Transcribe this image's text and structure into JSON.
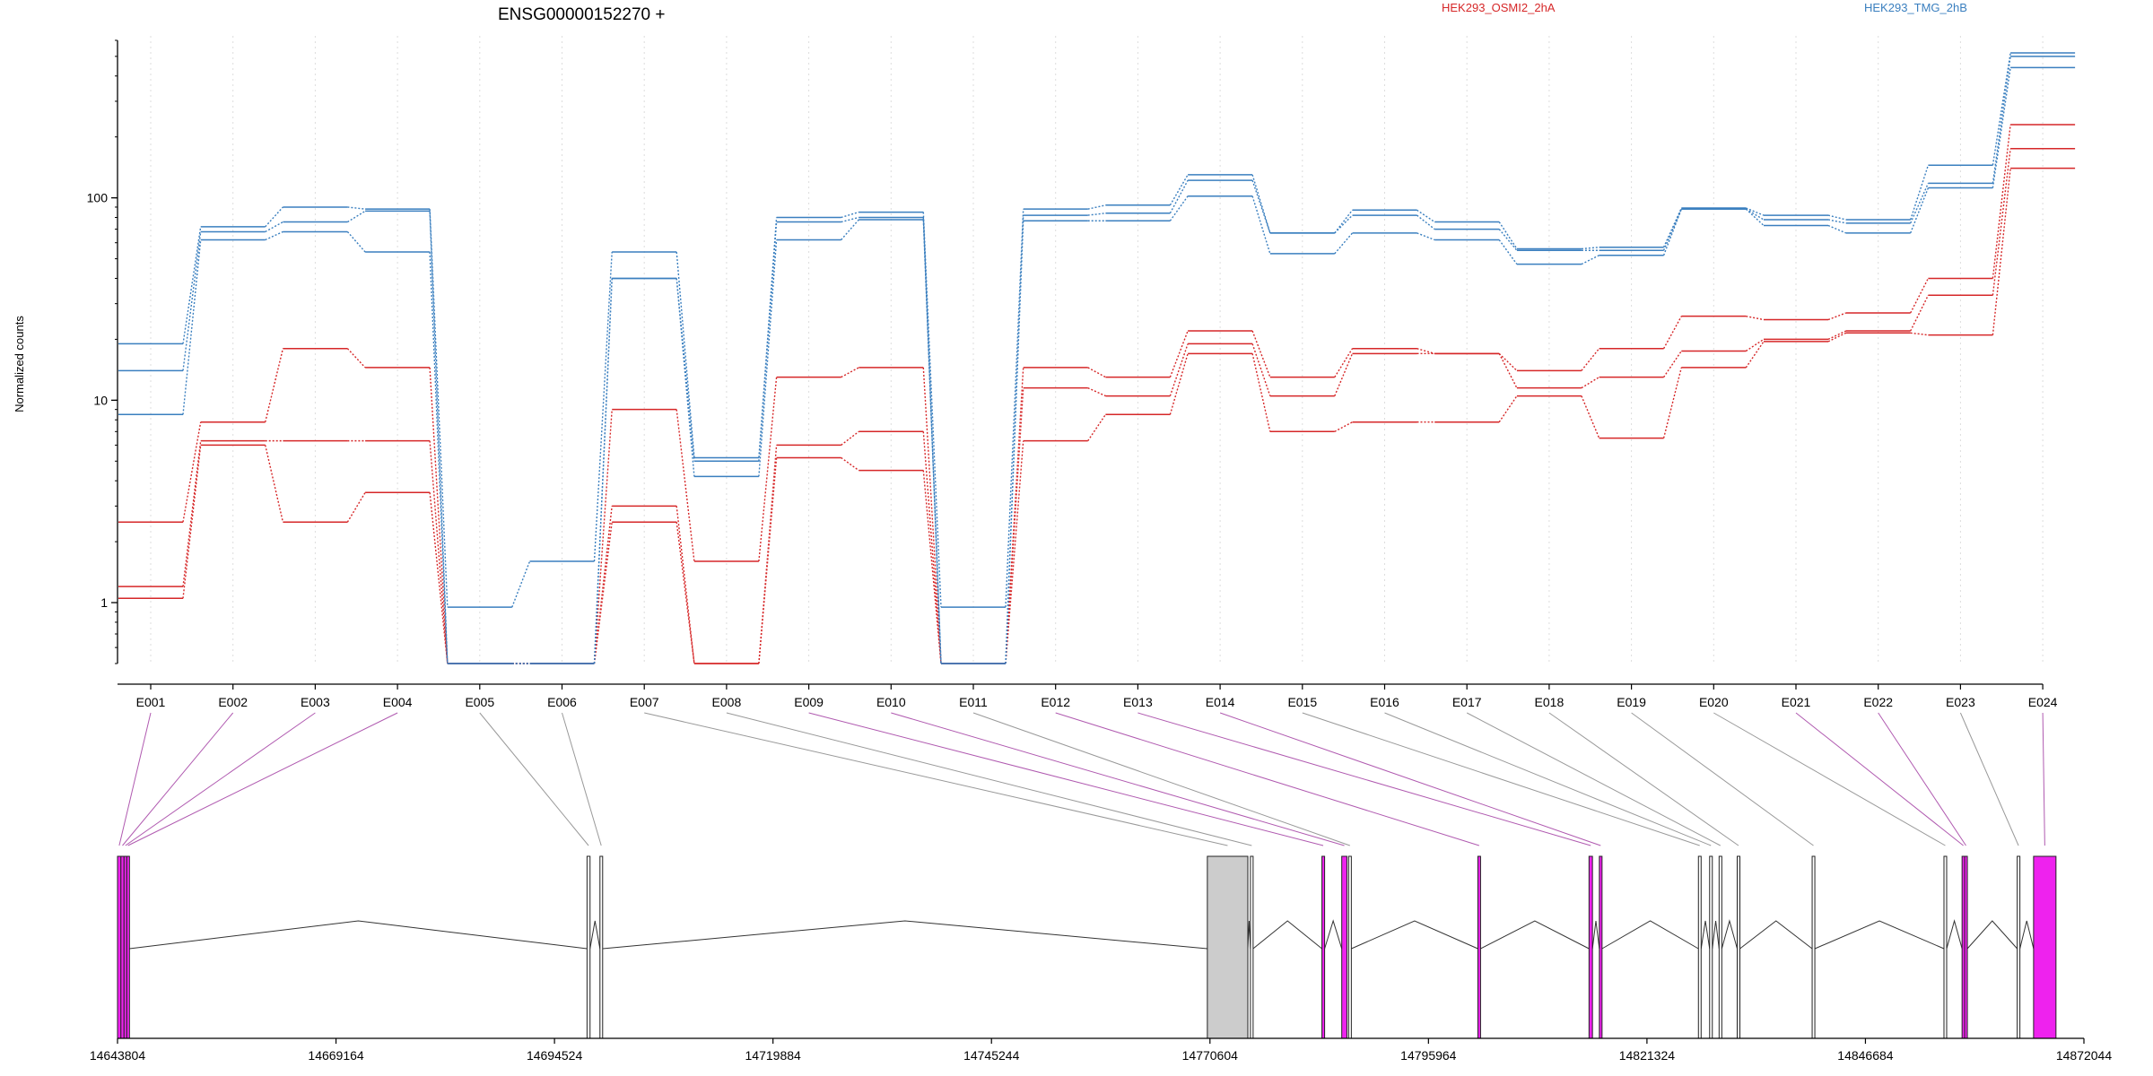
{
  "title": "ENSG00000152270 +",
  "legend": [
    {
      "label": "HEK293_OSMI2_2hA",
      "color": "#d62728"
    },
    {
      "label": "HEK293_TMG_2hB",
      "color": "#3a7fbf"
    }
  ],
  "colors": {
    "red": "#d62728",
    "blue": "#3a7fbf",
    "exon_highlight": "#ee22ee",
    "exon_gray": "#cccccc",
    "link_purple": "#b05ab0",
    "link_gray": "#999999"
  },
  "chart_data": {
    "type": "line",
    "title": "ENSG00000152270 +",
    "ylabel": "Normalized counts",
    "xlabel": "",
    "yscale": "log",
    "ylim": [
      0.5,
      600
    ],
    "yticks": [
      "1",
      "10",
      "100"
    ],
    "categories": [
      "E001",
      "E002",
      "E003",
      "E004",
      "E005",
      "E006",
      "E007",
      "E008",
      "E009",
      "E010",
      "E011",
      "E012",
      "E013",
      "E014",
      "E015",
      "E016",
      "E017",
      "E018",
      "E019",
      "E020",
      "E021",
      "E022",
      "E023",
      "E024"
    ],
    "zero_floor": 0.5,
    "series": [
      {
        "name": "HEK293_OSMI2_2hA",
        "color": "#d62728",
        "values": [
          2.5,
          7.8,
          18,
          14.5,
          0,
          0,
          9,
          1.6,
          13,
          14.5,
          0,
          14.5,
          13,
          22,
          13,
          18,
          17,
          14,
          18,
          26,
          25,
          27,
          40,
          230
        ]
      },
      {
        "name": "HEK293_OSMI2_2hA",
        "color": "#d62728",
        "values": [
          1.2,
          6.3,
          6.3,
          6.3,
          0,
          0,
          3,
          0.5,
          6,
          7,
          0,
          11.5,
          10.5,
          19,
          10.5,
          17,
          17,
          11.5,
          13,
          17.5,
          20,
          22,
          33,
          175
        ]
      },
      {
        "name": "HEK293_OSMI2_2hA",
        "color": "#d62728",
        "values": [
          1.05,
          6,
          2.5,
          3.5,
          0,
          0,
          2.5,
          0.5,
          5.2,
          4.5,
          0,
          6.3,
          8.5,
          17,
          7,
          7.8,
          7.8,
          10.5,
          6.5,
          14.5,
          19.5,
          21.5,
          21,
          140
        ]
      },
      {
        "name": "HEK293_TMG_2hB",
        "color": "#3a7fbf",
        "values": [
          19,
          72,
          90,
          88,
          0.95,
          1.6,
          54,
          5.2,
          80,
          85,
          0.95,
          88,
          92,
          130,
          67,
          87,
          76,
          56,
          57,
          89,
          82,
          78,
          145,
          520
        ]
      },
      {
        "name": "HEK293_TMG_2hB",
        "color": "#3a7fbf",
        "values": [
          14,
          68,
          76,
          86,
          0.5,
          0.5,
          40,
          5,
          76,
          80,
          0.5,
          82,
          84,
          122,
          67,
          82,
          70,
          55,
          55,
          88,
          78,
          75,
          118,
          500
        ]
      },
      {
        "name": "HEK293_TMG_2hB",
        "color": "#3a7fbf",
        "values": [
          8.5,
          62,
          68,
          54,
          0.5,
          0.5,
          40,
          4.2,
          62,
          78,
          0.5,
          77,
          77,
          102,
          53,
          67,
          62,
          47,
          52,
          88,
          73,
          67,
          112,
          440
        ]
      }
    ]
  },
  "gene_model": {
    "coord_ticks": [
      "14643804",
      "14669164",
      "14694524",
      "14719884",
      "14745244",
      "14770604",
      "14795964",
      "14821324",
      "14846684",
      "14872044"
    ],
    "exons": [
      {
        "label": "E001",
        "start": 14643804,
        "end": 14644200,
        "highlight": true
      },
      {
        "label": "E002",
        "start": 14644200,
        "end": 14644560,
        "highlight": true
      },
      {
        "label": "E003",
        "start": 14644560,
        "end": 14644880,
        "highlight": true
      },
      {
        "label": "E004",
        "start": 14644880,
        "end": 14645150,
        "highlight": true
      },
      {
        "label": "E005",
        "start": 14698300,
        "end": 14698650,
        "highlight": false
      },
      {
        "label": "E006",
        "start": 14699800,
        "end": 14700100,
        "highlight": false
      },
      {
        "label": "E007",
        "start": 14770300,
        "end": 14775000,
        "highlight": false
      },
      {
        "label": "E008",
        "start": 14775300,
        "end": 14775600,
        "highlight": false
      },
      {
        "label": "E009",
        "start": 14783600,
        "end": 14783900,
        "highlight": true
      },
      {
        "label": "E010",
        "start": 14785900,
        "end": 14786500,
        "highlight": true
      },
      {
        "label": "E011",
        "start": 14786700,
        "end": 14787000,
        "highlight": false
      },
      {
        "label": "E012",
        "start": 14801700,
        "end": 14802000,
        "highlight": true
      },
      {
        "label": "E013",
        "start": 14814600,
        "end": 14815000,
        "highlight": true
      },
      {
        "label": "E014",
        "start": 14815800,
        "end": 14816100,
        "highlight": true
      },
      {
        "label": "E015",
        "start": 14827300,
        "end": 14827600,
        "highlight": false
      },
      {
        "label": "E016",
        "start": 14828600,
        "end": 14828900,
        "highlight": false
      },
      {
        "label": "E017",
        "start": 14829700,
        "end": 14830000,
        "highlight": false
      },
      {
        "label": "E018",
        "start": 14831800,
        "end": 14832100,
        "highlight": false
      },
      {
        "label": "E019",
        "start": 14840500,
        "end": 14840800,
        "highlight": false
      },
      {
        "label": "E020",
        "start": 14855800,
        "end": 14856100,
        "highlight": false
      },
      {
        "label": "E021",
        "start": 14857900,
        "end": 14858200,
        "highlight": true
      },
      {
        "label": "E022",
        "start": 14858200,
        "end": 14858500,
        "highlight": true
      },
      {
        "label": "E023",
        "start": 14864300,
        "end": 14864600,
        "highlight": false
      },
      {
        "label": "E024",
        "start": 14866200,
        "end": 14868800,
        "highlight": true
      }
    ]
  }
}
